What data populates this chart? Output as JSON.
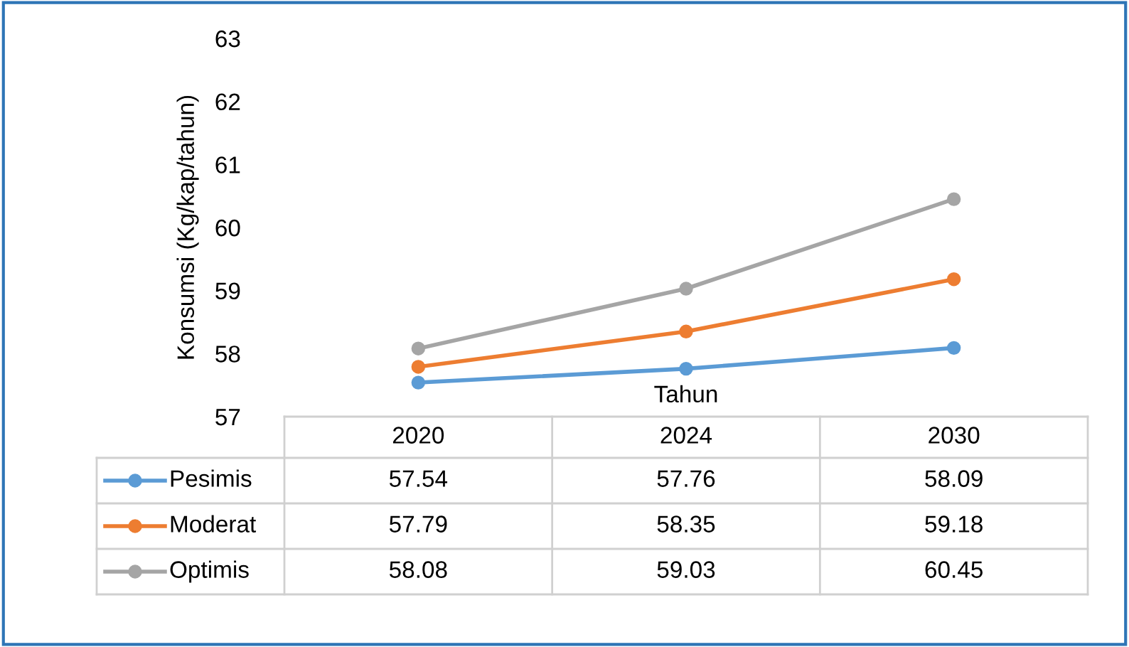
{
  "chart_data": {
    "type": "line",
    "xlabel": "Tahun",
    "ylabel": "Konsumsi (Kg/kap/tahun)",
    "categories": [
      "2020",
      "2024",
      "2030"
    ],
    "series": [
      {
        "name": "Pesimis",
        "color": "#5b9bd5",
        "values": [
          57.54,
          57.76,
          58.09
        ]
      },
      {
        "name": "Moderat",
        "color": "#ed7d31",
        "values": [
          57.79,
          58.35,
          59.18
        ]
      },
      {
        "name": "Optimis",
        "color": "#a5a5a5",
        "values": [
          58.08,
          59.03,
          60.45
        ]
      }
    ],
    "ylim": [
      57,
      63
    ],
    "yticks": [
      57,
      58,
      59,
      60,
      61,
      62,
      63
    ],
    "marker": "circle",
    "line_style": "solid",
    "grid": false,
    "legend": "bottom left",
    "data_labels": true
  }
}
